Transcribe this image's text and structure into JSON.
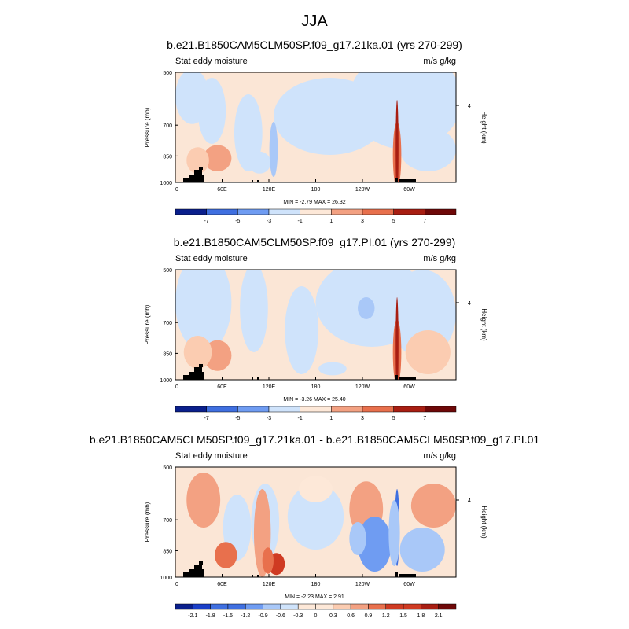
{
  "season": "JJA",
  "colors": {
    "fill_palette": [
      "#0a1f8c",
      "#1a3fc8",
      "#3f6fe0",
      "#6f9cf2",
      "#a9c8f8",
      "#cfe3fb",
      "#fde8d8",
      "#fbccb1",
      "#f3a182",
      "#e8704d",
      "#cf3a22",
      "#a81e12",
      "#6e0808"
    ],
    "ocean_base": "#fbe6d6",
    "topography": "#000000"
  },
  "chart_data": [
    {
      "type": "heatmap",
      "title": "b.e21.B1850CAM5CLM50SP.f09_g17.21ka.01 (yrs 270-299)",
      "left_label": "Stat eddy moisture",
      "right_label": "m/s g/kg",
      "ylabel": "Pressure (mb)",
      "ylabel_right": "Height (km)",
      "x_ticks": [
        "0",
        "60E",
        "120E",
        "180",
        "120W",
        "60W"
      ],
      "y_ticks": [
        "500",
        "700",
        "850",
        "1000"
      ],
      "y_right_ticks": [
        "4"
      ],
      "stats": "MIN =  -2.79  MAX =  26.32",
      "colorbar_labels": [
        "-7",
        "-5",
        "-3",
        "-1",
        "1",
        "3",
        "5",
        "7"
      ]
    },
    {
      "type": "heatmap",
      "title": "b.e21.B1850CAM5CLM50SP.f09_g17.PI.01 (yrs 270-299)",
      "left_label": "Stat eddy moisture",
      "right_label": "m/s g/kg",
      "ylabel": "Pressure (mb)",
      "ylabel_right": "Height (km)",
      "x_ticks": [
        "0",
        "60E",
        "120E",
        "180",
        "120W",
        "60W"
      ],
      "y_ticks": [
        "500",
        "700",
        "850",
        "1000"
      ],
      "y_right_ticks": [
        "4"
      ],
      "stats": "MIN =  -3.26  MAX =  25.40",
      "colorbar_labels": [
        "-7",
        "-5",
        "-3",
        "-1",
        "1",
        "3",
        "5",
        "7"
      ]
    },
    {
      "type": "heatmap",
      "title": "b.e21.B1850CAM5CLM50SP.f09_g17.21ka.01 - b.e21.B1850CAM5CLM50SP.f09_g17.PI.01",
      "left_label": "Stat eddy moisture",
      "right_label": "m/s g/kg",
      "ylabel": "Pressure (mb)",
      "ylabel_right": "Height (km)",
      "x_ticks": [
        "0",
        "60E",
        "120E",
        "180",
        "120W",
        "60W"
      ],
      "y_ticks": [
        "500",
        "700",
        "850",
        "1000"
      ],
      "y_right_ticks": [
        "4"
      ],
      "stats": "MIN =  -2.23  MAX =  2.91",
      "colorbar_labels": [
        "-2.1",
        "-1.8",
        "-1.5",
        "-1.2",
        "-0.9",
        "-0.6",
        "-0.3",
        "0",
        "0.3",
        "0.6",
        "0.9",
        "1.2",
        "1.5",
        "1.8",
        "2.1"
      ]
    }
  ]
}
